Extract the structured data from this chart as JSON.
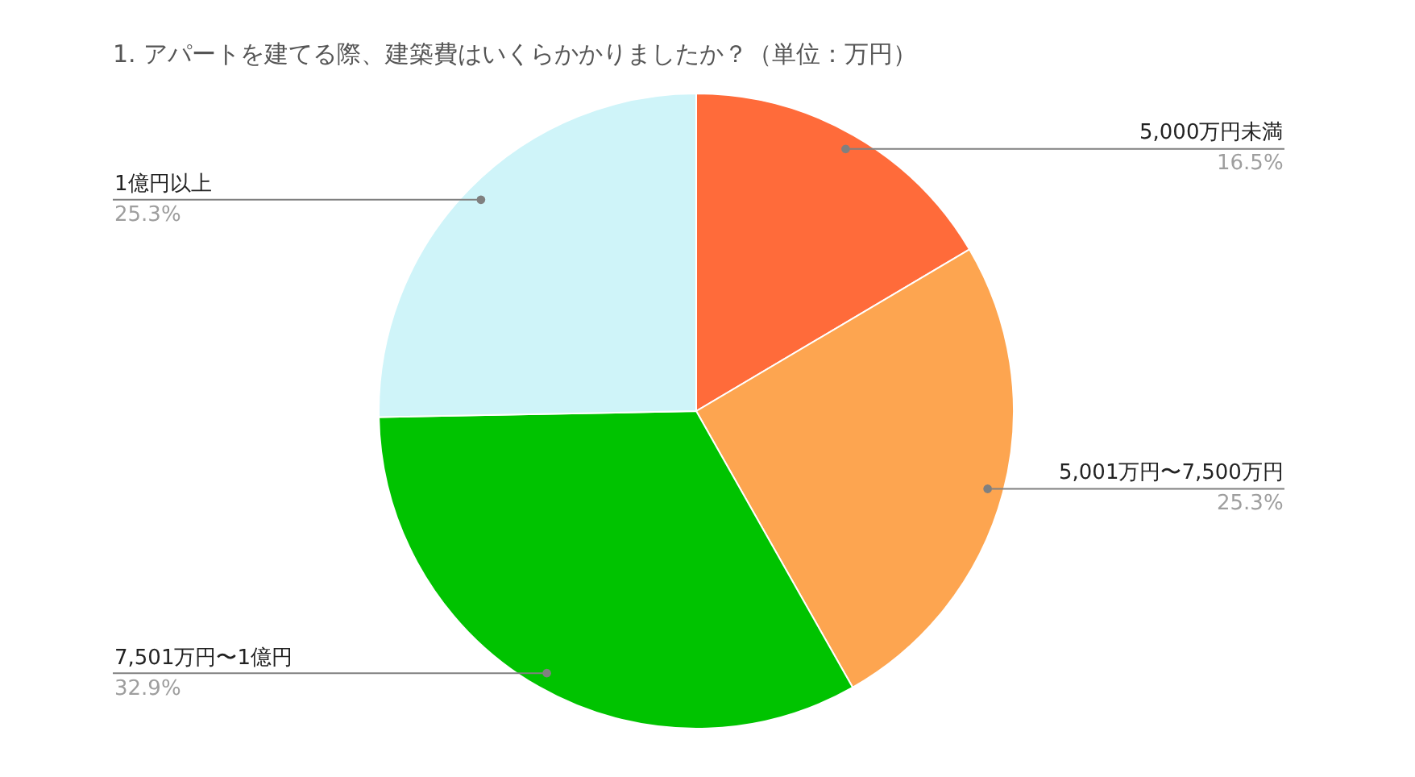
{
  "chart_data": {
    "type": "pie",
    "title": "1. アパートを建てる際、建築費はいくらかかりましたか？（単位：万円）",
    "categories": [
      "5,000万円未満",
      "5,001万円〜7,500万円",
      "7,501万円〜1億円",
      "1億円以上"
    ],
    "values": [
      16.5,
      25.3,
      32.9,
      25.3
    ],
    "colors": [
      "#ff6b3a",
      "#fda550",
      "#00c300",
      "#cff4f9"
    ],
    "value_labels": [
      "16.5%",
      "25.3%",
      "32.9%",
      "25.3%"
    ]
  }
}
